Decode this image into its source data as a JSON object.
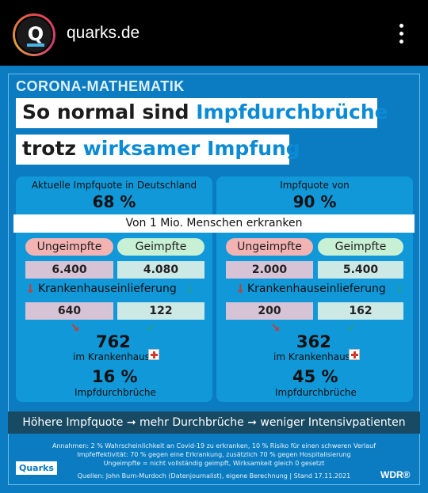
{
  "header": {
    "account_name": "quarks.de",
    "avatar_letter": "Q"
  },
  "infographic": {
    "kicker": "CORONA-MATHEMATIK",
    "headline1_a": "So normal sind ",
    "headline1_b": "Impfdurchbrüche",
    "headline2_a": "trotz ",
    "headline2_b": "wirksamer Impfung",
    "left": {
      "quota_label": "Aktuelle Impfquote in Deutschland",
      "quota_value": "68 %",
      "unvacc_label": "Ungeimpfte",
      "vacc_label": "Geimpfte",
      "unvacc_sick": "6.400",
      "vacc_sick": "4.080",
      "hosp_label": "Krankenhauseinlieferung",
      "unvacc_hosp": "640",
      "vacc_hosp": "122",
      "total_hosp": "762",
      "hosp_caption": "im Krankenhaus",
      "breakthrough_pct": "16 %",
      "breakthrough_label": "Impfdurchbrüche"
    },
    "right": {
      "quota_label": "Impfquote von",
      "quota_value": "90 %",
      "unvacc_label": "Ungeimpfte",
      "vacc_label": "Geimpfte",
      "unvacc_sick": "2.000",
      "vacc_sick": "5.400",
      "hosp_label": "Krankenhauseinlieferung",
      "unvacc_hosp": "200",
      "vacc_hosp": "162",
      "total_hosp": "362",
      "hosp_caption": "im Krankenhaus",
      "breakthrough_pct": "45 %",
      "breakthrough_label": "Impfdurchbrüche"
    },
    "middle_bar": "Von 1 Mio. Menschen erkranken",
    "conclusion": "Höhere Impfquote ➞ mehr Durchbrüche ➞ weniger Intensivpatienten",
    "footnote1": "Annahmen: 2 % Wahrscheinlichkeit an Covid-19 zu erkranken, 10 % Risiko für einen schweren Verlauf",
    "footnote2": "Impfeffektivität: 70 % gegen eine Erkrankung, zusätzlich 70 % gegen Hospitalisierung",
    "footnote3": "Ungeimpfte = nicht vollständig geimpft, Wirksamkeit gleich 0 gesetzt",
    "source": "Quellen: John Burn-Murdoch (Datenjournalist), eigene Berechnung | Stand 17.11.2021",
    "logo_left": "Quarks",
    "logo_right": "WDR®"
  }
}
